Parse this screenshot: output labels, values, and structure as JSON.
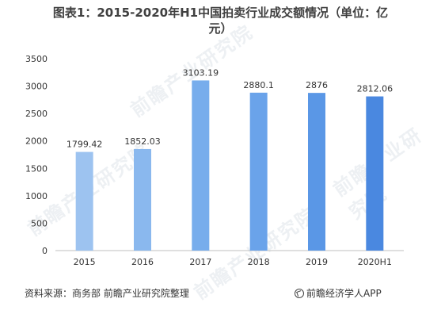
{
  "title_line1": "图表1：2015-2020年H1中国拍卖行业成交额情况（单位：亿",
  "title_line2": "元）",
  "chart_data": {
    "type": "bar",
    "categories": [
      "2015",
      "2016",
      "2017",
      "2018",
      "2019",
      "2020H1"
    ],
    "values": [
      1799.42,
      1852.03,
      3103.19,
      2880.1,
      2876,
      2812.06
    ],
    "data_labels": [
      "1799.42",
      "1852.03",
      "3103.19",
      "2880.1",
      "2876",
      "2812.06"
    ],
    "ylim": [
      0,
      3500
    ],
    "yticks": [
      0,
      500,
      1000,
      1500,
      2000,
      2500,
      3000,
      3500
    ],
    "bar_colors": [
      "#9dc3f0",
      "#8ab8ee",
      "#77adec",
      "#6aa3ea",
      "#5a97e6",
      "#4a88e0"
    ],
    "grid": false,
    "legend": "none"
  },
  "footer": {
    "source": "资料来源：商务部 前瞻产业研究院整理",
    "brand": "前瞻经济学人APP"
  },
  "watermark_text": "前瞻产业研究院"
}
